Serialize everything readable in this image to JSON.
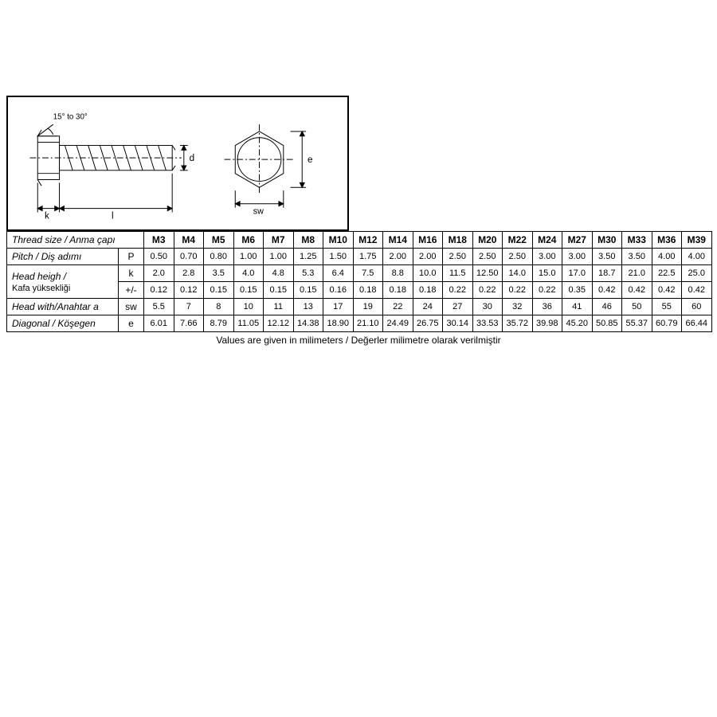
{
  "diagram": {
    "angle_label": "15° to 30°",
    "dim_k": "k",
    "dim_l": "l",
    "dim_d": "d",
    "dim_sw": "sw",
    "dim_e": "e"
  },
  "table": {
    "header_label": "Thread size  / Anma çapı",
    "sizes": [
      "M3",
      "M4",
      "M5",
      "M6",
      "M7",
      "M8",
      "M10",
      "M12",
      "M14",
      "M16",
      "M18",
      "M20",
      "M22",
      "M24",
      "M27",
      "M30",
      "M33",
      "M36",
      "M39"
    ],
    "rows": [
      {
        "label_html": "<i>Pitch</i> / Diş adımı",
        "symbol": "P",
        "values": [
          "0.50",
          "0.70",
          "0.80",
          "1.00",
          "1.00",
          "1.25",
          "1.50",
          "1.75",
          "2.00",
          "2.00",
          "2.50",
          "2.50",
          "2.50",
          "3.00",
          "3.00",
          "3.50",
          "3.50",
          "4.00",
          "4.00"
        ]
      },
      {
        "label_html": "<i>Head heigh /</i><br><span class='sub'>Kafa yüksekliği</span>",
        "rowspan": 2,
        "symbol": "k",
        "values": [
          "2.0",
          "2.8",
          "3.5",
          "4.0",
          "4.8",
          "5.3",
          "6.4",
          "7.5",
          "8.8",
          "10.0",
          "11.5",
          "12.50",
          "14.0",
          "15.0",
          "17.0",
          "18.7",
          "21.0",
          "22.5",
          "25.0"
        ]
      },
      {
        "symbol": "+/-",
        "values": [
          "0.12",
          "0.12",
          "0.15",
          "0.15",
          "0.15",
          "0.15",
          "0.16",
          "0.18",
          "0.18",
          "0.18",
          "0.22",
          "0.22",
          "0.22",
          "0.22",
          "0.35",
          "0.42",
          "0.42",
          "0.42",
          "0.42"
        ]
      },
      {
        "label_html": "<i>Head with</i>/Anahtar a",
        "symbol": "sw",
        "values": [
          "5.5",
          "7",
          "8",
          "10",
          "11",
          "13",
          "17",
          "19",
          "22",
          "24",
          "27",
          "30",
          "32",
          "36",
          "41",
          "46",
          "50",
          "55",
          "60"
        ]
      },
      {
        "label_html": "<i>Diagonal</i> / Köşegen",
        "symbol": "e",
        "values": [
          "6.01",
          "7.66",
          "8.79",
          "11.05",
          "12.12",
          "14.38",
          "18.90",
          "21.10",
          "24.49",
          "26.75",
          "30.14",
          "33.53",
          "35.72",
          "39.98",
          "45.20",
          "50.85",
          "55.37",
          "60.79",
          "66.44"
        ]
      }
    ],
    "footnote": "Values are given in milimeters / Değerler milimetre olarak verilmiştir"
  },
  "style": {
    "col_label_w": 140,
    "col_sym_w": 32,
    "col_val_w": 37.5,
    "border_color": "#000000",
    "bg_color": "#ffffff",
    "font_body": 11,
    "font_label": 12,
    "font_foot": 12
  }
}
